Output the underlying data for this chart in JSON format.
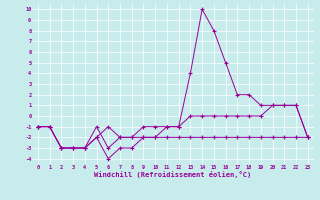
{
  "xlabel": "Windchill (Refroidissement éolien,°C)",
  "background_color": "#c8ecec",
  "line_color": "#990099",
  "grid_color": "#ffffff",
  "xlim": [
    -0.5,
    23.5
  ],
  "ylim": [
    -4.5,
    10.5
  ],
  "xticks": [
    0,
    1,
    2,
    3,
    4,
    5,
    6,
    7,
    8,
    9,
    10,
    11,
    12,
    13,
    14,
    15,
    16,
    17,
    18,
    19,
    20,
    21,
    22,
    23
  ],
  "yticks": [
    10,
    9,
    8,
    7,
    6,
    5,
    4,
    3,
    2,
    1,
    0,
    -1,
    -2,
    -3,
    -4
  ],
  "series": [
    {
      "x": [
        0,
        1,
        2,
        3,
        4,
        5,
        6,
        7,
        8,
        9,
        10,
        11,
        12,
        13,
        14,
        15,
        16,
        17,
        18,
        19,
        20,
        21,
        22,
        23
      ],
      "y": [
        -1,
        -1,
        -3,
        -3,
        -3,
        -2,
        -4,
        -3,
        -3,
        -2,
        -2,
        -2,
        -2,
        -2,
        -2,
        -2,
        -2,
        -2,
        -2,
        -2,
        -2,
        -2,
        -2,
        -2
      ]
    },
    {
      "x": [
        0,
        1,
        2,
        3,
        4,
        5,
        6,
        7,
        8,
        9,
        10,
        11,
        12,
        13,
        14,
        15,
        16,
        17,
        18,
        19,
        20,
        21,
        22,
        23
      ],
      "y": [
        -1,
        -1,
        -3,
        -3,
        -3,
        -1,
        -3,
        -2,
        -2,
        -1,
        -1,
        -1,
        -1,
        0,
        0,
        0,
        0,
        0,
        0,
        0,
        1,
        1,
        1,
        -2
      ]
    },
    {
      "x": [
        0,
        1,
        2,
        3,
        4,
        5,
        6,
        7,
        8,
        9,
        10,
        11,
        12,
        13,
        14,
        15,
        16,
        17,
        18,
        19,
        20,
        21,
        22,
        23
      ],
      "y": [
        -1,
        -1,
        -3,
        -3,
        -3,
        -2,
        -1,
        -2,
        -2,
        -2,
        -2,
        -1,
        -1,
        4,
        10,
        8,
        5,
        2,
        2,
        1,
        1,
        1,
        1,
        -2
      ]
    }
  ]
}
